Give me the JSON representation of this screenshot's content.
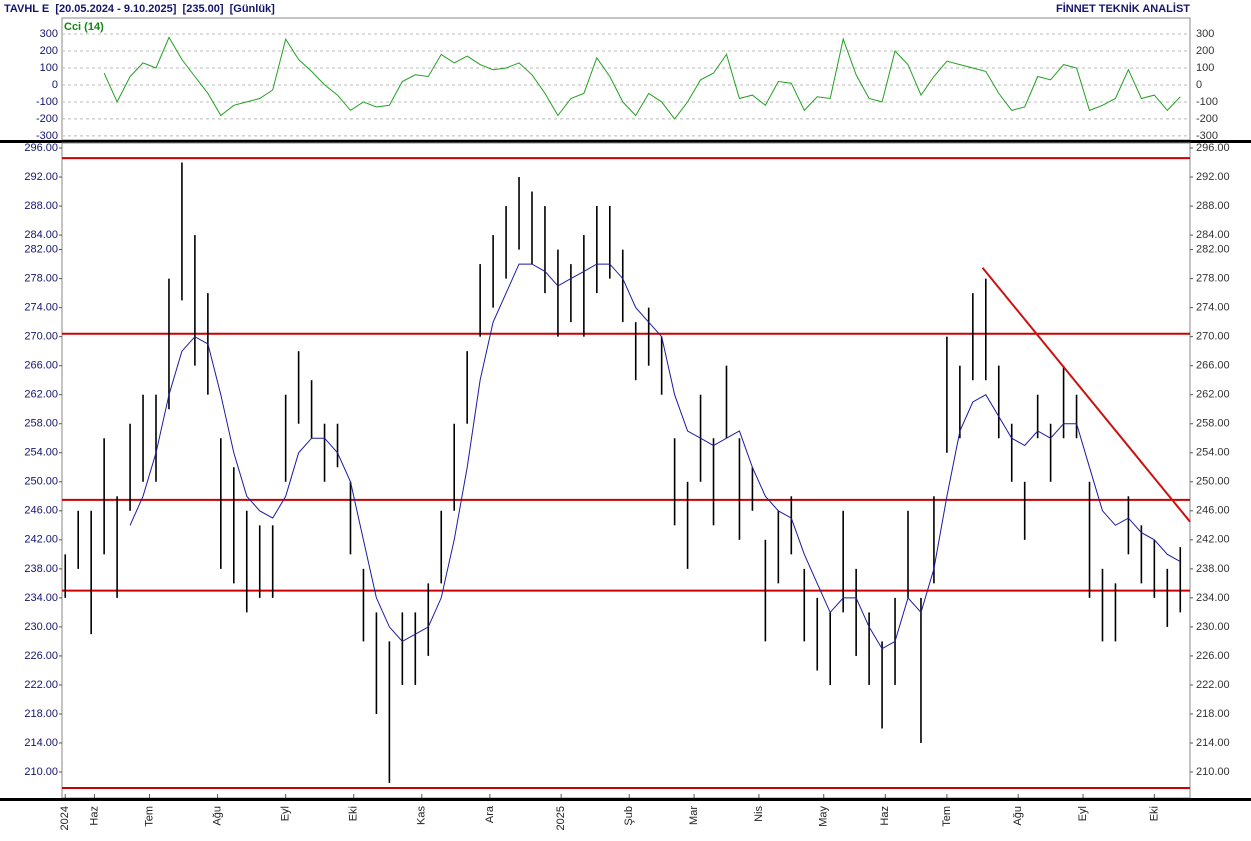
{
  "header": {
    "title": "TAVHL E  [20.05.2024 - 9.10.2025]  [235.00]  [Günlük]",
    "brand": "FİNNET TEKNİK ANALİST"
  },
  "chart_data": [
    {
      "type": "line",
      "name": "Cci (14)",
      "x": [
        0,
        4,
        8,
        12,
        16,
        20,
        24,
        28,
        32,
        36,
        40,
        44,
        48,
        52,
        56,
        60,
        64,
        68,
        72,
        76,
        80,
        84,
        88,
        92,
        96,
        100,
        104,
        108,
        112,
        116,
        120,
        124,
        128,
        132,
        136,
        140,
        144,
        148,
        152,
        156,
        160,
        164,
        168,
        172,
        176,
        180,
        184,
        188,
        192,
        196,
        200,
        204,
        208,
        212,
        216,
        220,
        224,
        228,
        232,
        236,
        240,
        244,
        248,
        252,
        256,
        260,
        264,
        268,
        272,
        276,
        280,
        284,
        288,
        292,
        296,
        300,
        304,
        308,
        312,
        316,
        320,
        324,
        328,
        332,
        336,
        340,
        344
      ],
      "series": [
        {
          "name": "Cci (14)",
          "color": "#22a022",
          "values": [
            null,
            null,
            null,
            70,
            -100,
            50,
            130,
            100,
            280,
            150,
            50,
            -50,
            -180,
            -120,
            -100,
            -80,
            -30,
            270,
            150,
            80,
            0,
            -60,
            -150,
            -100,
            -130,
            -120,
            20,
            60,
            50,
            180,
            130,
            170,
            120,
            90,
            100,
            130,
            60,
            -50,
            -180,
            -80,
            -50,
            160,
            50,
            -100,
            -180,
            -50,
            -100,
            -200,
            -100,
            30,
            70,
            180,
            -80,
            -60,
            -120,
            20,
            10,
            -150,
            -70,
            -80,
            270,
            60,
            -80,
            -100,
            200,
            120,
            -60,
            50,
            140,
            120,
            100,
            80,
            -50,
            -150,
            -130,
            50,
            30,
            120,
            100,
            -150,
            -120,
            -80,
            90,
            -80,
            -60,
            -150,
            -70
          ]
        }
      ],
      "xlim": [
        -1,
        347
      ],
      "ylim": [
        -324,
        394
      ],
      "yticks": [
        300,
        200,
        100,
        0,
        -100,
        -200,
        -300
      ],
      "grid": true
    },
    {
      "type": "ohlc",
      "x": [
        0,
        4,
        8,
        12,
        16,
        20,
        24,
        28,
        32,
        36,
        40,
        44,
        48,
        52,
        56,
        60,
        64,
        68,
        72,
        76,
        80,
        84,
        88,
        92,
        96,
        100,
        104,
        108,
        112,
        116,
        120,
        124,
        128,
        132,
        136,
        140,
        144,
        148,
        152,
        156,
        160,
        164,
        168,
        172,
        176,
        180,
        184,
        188,
        192,
        196,
        200,
        204,
        208,
        212,
        216,
        220,
        224,
        228,
        232,
        236,
        240,
        244,
        248,
        252,
        256,
        260,
        264,
        268,
        272,
        276,
        280,
        284,
        288,
        292,
        296,
        300,
        304,
        308,
        312,
        316,
        320,
        324,
        328,
        332,
        336,
        340,
        344
      ],
      "high": [
        240,
        246,
        246,
        256,
        248,
        258,
        262,
        262,
        278,
        294,
        284,
        276,
        256,
        252,
        246,
        244,
        244,
        262,
        268,
        264,
        258,
        258,
        250,
        238,
        232,
        228,
        232,
        232,
        236,
        246,
        258,
        268,
        280,
        284,
        288,
        292,
        290,
        288,
        282,
        280,
        284,
        288,
        288,
        282,
        272,
        274,
        270,
        256,
        250,
        262,
        256,
        266,
        256,
        252,
        242,
        246,
        248,
        238,
        234,
        232,
        246,
        238,
        232,
        228,
        234,
        246,
        234,
        248,
        270,
        266,
        276,
        278,
        266,
        258,
        250,
        262,
        258,
        266,
        262,
        250,
        238,
        236,
        248,
        244,
        242,
        238,
        241
      ],
      "low": [
        234,
        238,
        229,
        240,
        234,
        246,
        250,
        250,
        260,
        275,
        266,
        262,
        238,
        236,
        232,
        234,
        234,
        250,
        258,
        256,
        250,
        252,
        240,
        228,
        218,
        208.5,
        222,
        222,
        226,
        236,
        246,
        258,
        270,
        274,
        278,
        282,
        280,
        276,
        270,
        272,
        270,
        276,
        278,
        272,
        264,
        266,
        262,
        244,
        238,
        250,
        244,
        256,
        242,
        246,
        228,
        236,
        240,
        228,
        224,
        222,
        232,
        226,
        222,
        216,
        222,
        234,
        214,
        236,
        254,
        256,
        264,
        264,
        256,
        250,
        242,
        256,
        250,
        256,
        256,
        234,
        228,
        228,
        240,
        236,
        234,
        230,
        232
      ],
      "color": "#000000",
      "ma": {
        "color": "#1a1aa0",
        "values": [
          null,
          null,
          null,
          null,
          null,
          244,
          248,
          254,
          262,
          268,
          270,
          269,
          262,
          254,
          248,
          246,
          245,
          248,
          254,
          256,
          256,
          254,
          250,
          242,
          234,
          230,
          228,
          229,
          230,
          234,
          242,
          252,
          264,
          272,
          276,
          280,
          280,
          279,
          277,
          278,
          279,
          280,
          280,
          278,
          274,
          272,
          270,
          262,
          257,
          256,
          255,
          256,
          257,
          252,
          248,
          246,
          245,
          240,
          236,
          232,
          234,
          234,
          230,
          227,
          228,
          234,
          232,
          238,
          248,
          257,
          261,
          262,
          259,
          256,
          255,
          257,
          256,
          258,
          258,
          252,
          246,
          244,
          245,
          243,
          242,
          240,
          239
        ]
      },
      "levels": {
        "color": "#cc0000",
        "values": [
          294.6,
          270.4,
          247.5,
          235,
          207.8
        ]
      },
      "trendline": {
        "color": "#cc1111",
        "x": [
          283,
          347
        ],
        "y": [
          279.5,
          244.5
        ]
      },
      "xlim": [
        -1,
        347
      ],
      "ylim": [
        206.42,
        296.69
      ],
      "xticks": [
        {
          "value": 0,
          "label": "2024"
        },
        {
          "value": 9,
          "label": "Haz"
        },
        {
          "value": 26,
          "label": "Tem"
        },
        {
          "value": 47,
          "label": "Ağu"
        },
        {
          "value": 68,
          "label": "Eyl"
        },
        {
          "value": 89,
          "label": "Eki"
        },
        {
          "value": 110,
          "label": "Kas"
        },
        {
          "value": 131,
          "label": "Ara"
        },
        {
          "value": 153,
          "label": "2025"
        },
        {
          "value": 174,
          "label": "Şub"
        },
        {
          "value": 194,
          "label": "Mar"
        },
        {
          "value": 214,
          "label": "Nis"
        },
        {
          "value": 234,
          "label": "May"
        },
        {
          "value": 253,
          "label": "Haz"
        },
        {
          "value": 272,
          "label": "Tem"
        },
        {
          "value": 294,
          "label": "Ağu"
        },
        {
          "value": 314,
          "label": "Eyl"
        },
        {
          "value": 336,
          "label": "Eki"
        }
      ],
      "yticks": [
        {
          "value": 296,
          "label": "296.00"
        },
        {
          "value": 292,
          "label": "292.00"
        },
        {
          "value": 288,
          "label": "288.00"
        },
        {
          "value": 284,
          "label": "284.00"
        },
        {
          "value": 282,
          "label": "282.00"
        },
        {
          "value": 278,
          "label": "278.00"
        },
        {
          "value": 274,
          "label": "274.00"
        },
        {
          "value": 270,
          "label": "270.00"
        },
        {
          "value": 266,
          "label": "266.00"
        },
        {
          "value": 262,
          "label": "262.00"
        },
        {
          "value": 258,
          "label": "258.00"
        },
        {
          "value": 254,
          "label": "254.00"
        },
        {
          "value": 250,
          "label": "250.00"
        },
        {
          "value": 246,
          "label": "246.00"
        },
        {
          "value": 242,
          "label": "242.00"
        },
        {
          "value": 238,
          "label": "238.00"
        },
        {
          "value": 234,
          "label": "234.00"
        },
        {
          "value": 230,
          "label": "230.00"
        },
        {
          "value": 226,
          "label": "226.00"
        },
        {
          "value": 222,
          "label": "222.00"
        },
        {
          "value": 218,
          "label": "218.00"
        },
        {
          "value": 214,
          "label": "214.00"
        },
        {
          "value": 210,
          "label": "210.00"
        }
      ]
    }
  ]
}
